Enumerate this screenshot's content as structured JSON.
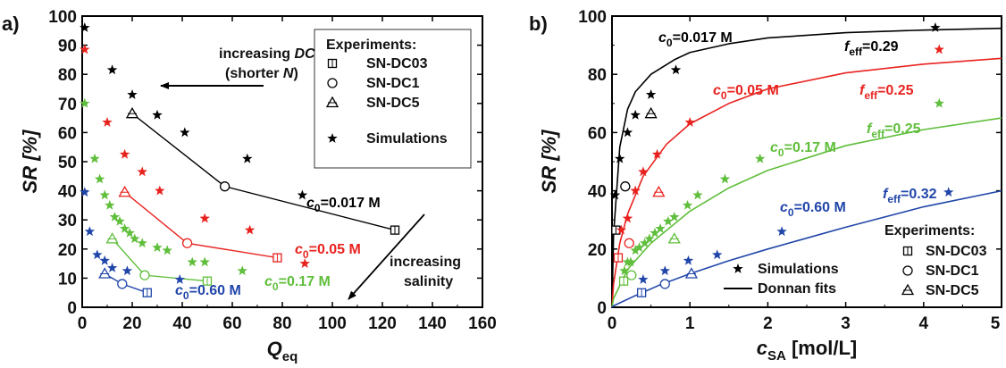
{
  "chart_data": [
    {
      "panel": "a)",
      "type": "scatter",
      "xlabel": "Q",
      "xlabel_sub": "eq",
      "ylabel": "SR [%]",
      "xlim": [
        0,
        160
      ],
      "ylim": [
        0,
        100
      ],
      "xticks": [
        0,
        20,
        40,
        60,
        80,
        100,
        120,
        140,
        160
      ],
      "yticks": [
        0,
        10,
        20,
        30,
        40,
        50,
        60,
        70,
        80,
        90,
        100
      ],
      "legend": {
        "title": "Experiments:",
        "entries": [
          {
            "marker": "square",
            "label": "SN-DC03"
          },
          {
            "marker": "circle",
            "label": "SN-DC1"
          },
          {
            "marker": "triangle",
            "label": "SN-DC5"
          },
          {
            "marker": "star",
            "label": "Simulations"
          }
        ],
        "placement": "top-right"
      },
      "annotations": {
        "dc_line1": "increasing ",
        "dc_italic": "DC",
        "dc_line2a": "(shorter ",
        "dc_line2b": "N",
        "dc_line2c": ")",
        "salinity_line1": "increasing",
        "salinity_line2": "salinity"
      },
      "series": [
        {
          "c0": "0.017 M",
          "color": "#000000",
          "label_parts": {
            "c": "c",
            "sub": "0",
            "val": "=0.017 M"
          },
          "exp": [
            {
              "x": 20,
              "y": 66.5,
              "m": "triangle"
            },
            {
              "x": 57,
              "y": 41.5,
              "m": "circle"
            },
            {
              "x": 125,
              "y": 26.5,
              "m": "square"
            }
          ],
          "sim": [
            [
              1,
              96
            ],
            [
              12,
              81.5
            ],
            [
              20,
              73
            ],
            [
              30,
              66
            ],
            [
              41,
              60
            ],
            [
              66,
              51
            ],
            [
              88,
              38.5
            ]
          ]
        },
        {
          "c0": "0.05 M",
          "color": "#e8231f",
          "label_parts": {
            "c": "c",
            "sub": "0",
            "val": "=0.05 M"
          },
          "exp": [
            {
              "x": 17,
              "y": 39.5,
              "m": "triangle"
            },
            {
              "x": 42,
              "y": 22,
              "m": "circle"
            },
            {
              "x": 78,
              "y": 17,
              "m": "square"
            }
          ],
          "sim": [
            [
              1,
              88.5
            ],
            [
              10,
              63.5
            ],
            [
              17,
              52.5
            ],
            [
              24,
              46.5
            ],
            [
              31,
              40
            ],
            [
              49,
              30.5
            ],
            [
              67,
              26.5
            ],
            [
              89,
              15
            ]
          ]
        },
        {
          "c0": "0.17 M",
          "color": "#5fbe3b",
          "label_parts": {
            "c": "c",
            "sub": "0",
            "val": "=0.17 M"
          },
          "exp": [
            {
              "x": 12,
              "y": 23.5,
              "m": "triangle"
            },
            {
              "x": 25,
              "y": 11,
              "m": "circle"
            },
            {
              "x": 50,
              "y": 9,
              "m": "square"
            }
          ],
          "sim": [
            [
              1,
              70
            ],
            [
              5,
              51
            ],
            [
              7,
              44
            ],
            [
              9,
              38.5
            ],
            [
              11,
              35
            ],
            [
              13,
              31
            ],
            [
              15,
              29.5
            ],
            [
              17,
              27
            ],
            [
              19,
              25.5
            ],
            [
              21,
              23.5
            ],
            [
              24,
              22
            ],
            [
              30,
              20.5
            ],
            [
              34,
              19.5
            ],
            [
              44,
              15.5
            ],
            [
              49,
              15.5
            ],
            [
              64,
              12.5
            ]
          ]
        },
        {
          "c0": "0.60 M",
          "color": "#2146a9",
          "label_parts": {
            "c": "c",
            "sub": "0",
            "val": "=0.60 M"
          },
          "exp": [
            {
              "x": 9,
              "y": 11.5,
              "m": "triangle"
            },
            {
              "x": 16,
              "y": 8,
              "m": "circle"
            },
            {
              "x": 26,
              "y": 5,
              "m": "square"
            }
          ],
          "sim": [
            [
              1,
              39.5
            ],
            [
              3,
              26
            ],
            [
              6,
              18
            ],
            [
              9,
              16
            ],
            [
              12,
              13.5
            ],
            [
              18,
              12.5
            ],
            [
              39,
              9.5
            ]
          ]
        }
      ]
    },
    {
      "panel": "b)",
      "type": "scatter",
      "xlabel": "c",
      "xlabel_sub": "SA",
      "xlabel_unit": " [mol/L]",
      "ylabel": "SR [%]",
      "xlim": [
        0,
        5
      ],
      "ylim": [
        0,
        100
      ],
      "xticks": [
        0,
        1,
        2,
        3,
        4,
        5
      ],
      "yticks": [
        0,
        20,
        40,
        60,
        80,
        100
      ],
      "legend_left": [
        {
          "marker": "star",
          "label": "Simulations"
        },
        {
          "marker": "line",
          "label": "Donnan fits"
        }
      ],
      "legend_right": {
        "title": "Experiments:",
        "entries": [
          {
            "marker": "square",
            "label": "SN-DC03"
          },
          {
            "marker": "circle",
            "label": "SN-DC1"
          },
          {
            "marker": "triangle",
            "label": "SN-DC5"
          }
        ],
        "placement": "bottom-right"
      },
      "series": [
        {
          "c0": "0.017 M",
          "color": "#000000",
          "label_parts": {
            "c": "c",
            "sub": "0",
            "val": "=0.017 M"
          },
          "feff_parts": {
            "f": "f",
            "sub": "eff",
            "val": "=0.29"
          },
          "fit": [
            [
              0.02,
              25
            ],
            [
              0.1,
              55
            ],
            [
              0.2,
              68
            ],
            [
              0.3,
              74
            ],
            [
              0.5,
              80
            ],
            [
              0.8,
              85
            ],
            [
              1,
              87.5
            ],
            [
              1.5,
              90.5
            ],
            [
              2,
              92.5
            ],
            [
              3,
              94.3
            ],
            [
              4,
              95.2
            ],
            [
              5,
              95.8
            ]
          ],
          "exp": [
            {
              "x": 0.05,
              "y": 26.5,
              "m": "square"
            },
            {
              "x": 0.17,
              "y": 41.5,
              "m": "circle"
            },
            {
              "x": 0.5,
              "y": 66.5,
              "m": "triangle"
            }
          ],
          "sim": [
            [
              0.04,
              38.5
            ],
            [
              0.1,
              51
            ],
            [
              0.2,
              60
            ],
            [
              0.3,
              66
            ],
            [
              0.5,
              73
            ],
            [
              0.82,
              81.5
            ],
            [
              4.15,
              96
            ]
          ]
        },
        {
          "c0": "0.05 M",
          "color": "#e8231f",
          "label_parts": {
            "c": "c",
            "sub": "0",
            "val": "=0.05 M"
          },
          "feff_parts": {
            "f": "f",
            "sub": "eff",
            "val": "=0.25"
          },
          "fit": [
            [
              0.02,
              8
            ],
            [
              0.1,
              22
            ],
            [
              0.2,
              32
            ],
            [
              0.4,
              45
            ],
            [
              0.7,
              56
            ],
            [
              1,
              63
            ],
            [
              1.5,
              70
            ],
            [
              2,
              75
            ],
            [
              3,
              80.5
            ],
            [
              4,
              83.5
            ],
            [
              5,
              85.5
            ]
          ],
          "exp": [
            {
              "x": 0.08,
              "y": 17,
              "m": "square"
            },
            {
              "x": 0.22,
              "y": 22,
              "m": "circle"
            },
            {
              "x": 0.6,
              "y": 39.5,
              "m": "triangle"
            }
          ],
          "sim": [
            [
              0.12,
              26.5
            ],
            [
              0.2,
              30.5
            ],
            [
              0.3,
              40
            ],
            [
              0.4,
              46.5
            ],
            [
              0.58,
              52.5
            ],
            [
              1.0,
              63.5
            ],
            [
              4.2,
              88.5
            ]
          ]
        },
        {
          "c0": "0.17 M",
          "color": "#5fbe3b",
          "label_parts": {
            "c": "c",
            "sub": "0",
            "val": "=0.17 M"
          },
          "feff_parts": {
            "f": "f",
            "sub": "eff",
            "val": "=0.25"
          },
          "fit": [
            [
              0.02,
              3
            ],
            [
              0.2,
              13
            ],
            [
              0.5,
              22
            ],
            [
              1,
              33
            ],
            [
              1.5,
              41
            ],
            [
              2,
              47
            ],
            [
              3,
              55.5
            ],
            [
              4,
              61
            ],
            [
              5,
              65
            ]
          ],
          "exp": [
            {
              "x": 0.15,
              "y": 9,
              "m": "square"
            },
            {
              "x": 0.25,
              "y": 11,
              "m": "circle"
            },
            {
              "x": 0.8,
              "y": 23.5,
              "m": "triangle"
            }
          ],
          "sim": [
            [
              0.16,
              12.5
            ],
            [
              0.2,
              15.5
            ],
            [
              0.24,
              15.5
            ],
            [
              0.3,
              19.5
            ],
            [
              0.35,
              20.5
            ],
            [
              0.42,
              22
            ],
            [
              0.48,
              23.5
            ],
            [
              0.55,
              25.5
            ],
            [
              0.62,
              27
            ],
            [
              0.72,
              29.5
            ],
            [
              0.8,
              31
            ],
            [
              0.97,
              35
            ],
            [
              1.1,
              38.5
            ],
            [
              1.45,
              44
            ],
            [
              1.9,
              51
            ],
            [
              4.2,
              70
            ]
          ]
        },
        {
          "c0": "0.60 M",
          "color": "#2146a9",
          "label_parts": {
            "c": "c",
            "sub": "0",
            "val": "=0.60 M"
          },
          "feff_parts": {
            "f": "f",
            "sub": "eff",
            "val": "=0.32"
          },
          "fit": [
            [
              0.02,
              0.5
            ],
            [
              0.3,
              4
            ],
            [
              0.6,
              7.5
            ],
            [
              1,
              11.5
            ],
            [
              1.5,
              16
            ],
            [
              2,
              20
            ],
            [
              3,
              27.5
            ],
            [
              4,
              34.5
            ],
            [
              5,
              40
            ]
          ],
          "exp": [
            {
              "x": 0.38,
              "y": 5,
              "m": "square"
            },
            {
              "x": 0.68,
              "y": 8,
              "m": "circle"
            },
            {
              "x": 1.02,
              "y": 11.5,
              "m": "triangle"
            }
          ],
          "sim": [
            [
              0.4,
              9.5
            ],
            [
              0.68,
              12.5
            ],
            [
              0.98,
              16
            ],
            [
              1.35,
              18
            ],
            [
              2.18,
              26
            ],
            [
              4.32,
              39.5
            ]
          ]
        }
      ]
    }
  ]
}
